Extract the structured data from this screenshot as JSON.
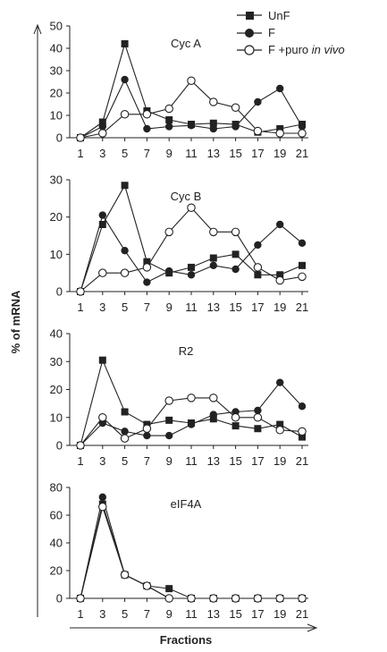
{
  "chart_data": [
    {
      "type": "line",
      "title": "Cyc A",
      "x": [
        1,
        3,
        5,
        7,
        9,
        11,
        13,
        15,
        17,
        19,
        21
      ],
      "ylim": [
        0,
        50
      ],
      "yticks": [
        0,
        10,
        20,
        30,
        40,
        50
      ],
      "series": [
        {
          "name": "UnF",
          "marker": "square",
          "values": [
            0,
            7,
            42,
            12,
            8,
            6,
            6.5,
            6,
            2.5,
            4,
            6
          ]
        },
        {
          "name": "F",
          "marker": "filled-circle",
          "values": [
            0,
            5,
            26,
            4,
            5,
            5.5,
            4,
            5,
            16,
            22,
            5
          ]
        },
        {
          "name": "F +puro in vivo",
          "marker": "open-circle",
          "values": [
            0,
            2,
            10.5,
            10.5,
            13,
            25.5,
            16,
            13.5,
            3,
            2,
            2
          ]
        }
      ]
    },
    {
      "type": "line",
      "title": "Cyc B",
      "x": [
        1,
        3,
        5,
        7,
        9,
        11,
        13,
        15,
        17,
        19,
        21
      ],
      "ylim": [
        0,
        30
      ],
      "yticks": [
        0,
        10,
        20,
        30
      ],
      "series": [
        {
          "name": "UnF",
          "marker": "square",
          "values": [
            0,
            18,
            28.5,
            8,
            5,
            6.5,
            9,
            10,
            4.5,
            4.5,
            7
          ]
        },
        {
          "name": "F",
          "marker": "filled-circle",
          "values": [
            0,
            20.5,
            11,
            2.5,
            5.5,
            4.5,
            7,
            6,
            12.5,
            18,
            13
          ]
        },
        {
          "name": "F +puro in vivo",
          "marker": "open-circle",
          "values": [
            0,
            5,
            5,
            6.5,
            16,
            22.5,
            16,
            16,
            6.5,
            3,
            4
          ]
        }
      ]
    },
    {
      "type": "line",
      "title": "R2",
      "x": [
        1,
        3,
        5,
        7,
        9,
        11,
        13,
        15,
        17,
        19,
        21
      ],
      "ylim": [
        0,
        40
      ],
      "yticks": [
        0,
        10,
        20,
        30,
        40
      ],
      "series": [
        {
          "name": "UnF",
          "marker": "square",
          "values": [
            0,
            30.5,
            12,
            7.5,
            9,
            8,
            9.5,
            7,
            6,
            7.5,
            3
          ]
        },
        {
          "name": "F",
          "marker": "filled-circle",
          "values": [
            0,
            8,
            5,
            3.5,
            3.5,
            7.5,
            11,
            12,
            12.5,
            22.5,
            14
          ]
        },
        {
          "name": "F +puro in vivo",
          "marker": "open-circle",
          "values": [
            0,
            10,
            2.5,
            6,
            16,
            17,
            17,
            10,
            10,
            5.5,
            5
          ]
        }
      ]
    },
    {
      "type": "line",
      "title": "eIF4A",
      "x": [
        1,
        3,
        5,
        7,
        9,
        11,
        13,
        15,
        17,
        19,
        21
      ],
      "ylim": [
        0,
        80
      ],
      "yticks": [
        0,
        20,
        40,
        60,
        80
      ],
      "series": [
        {
          "name": "UnF",
          "marker": "square",
          "values": [
            0,
            68,
            17,
            9,
            7,
            0,
            0,
            0,
            0,
            0,
            0
          ]
        },
        {
          "name": "F",
          "marker": "filled-circle",
          "values": [
            0,
            73,
            17,
            9,
            0,
            0,
            0,
            0,
            0,
            0,
            0
          ]
        },
        {
          "name": "F +puro in vivo",
          "marker": "open-circle",
          "values": [
            0,
            66,
            17,
            9,
            0,
            0,
            0,
            0,
            0,
            0,
            0
          ]
        }
      ]
    }
  ],
  "legend": {
    "position": "top-right",
    "items": [
      {
        "label": "UnF",
        "marker": "square"
      },
      {
        "label": "F",
        "marker": "filled-circle"
      },
      {
        "label": "F +puro ",
        "label_italic": "in vivo",
        "marker": "open-circle"
      }
    ]
  },
  "ylabel": "% of mRNA",
  "xlabel": "Fractions"
}
